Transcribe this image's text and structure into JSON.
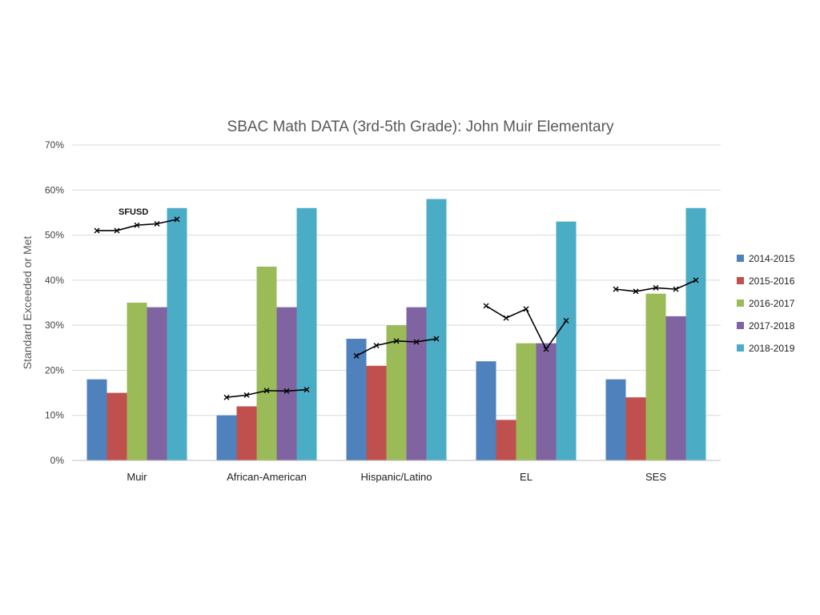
{
  "chart_data": {
    "type": "bar",
    "title": "SBAC Math DATA (3rd-5th Grade): John Muir Elementary",
    "xlabel": "",
    "ylabel": "Standard Exceeded or Met",
    "ylim": [
      0,
      70
    ],
    "yticks": [
      "0%",
      "10%",
      "20%",
      "30%",
      "40%",
      "50%",
      "60%",
      "70%"
    ],
    "grid": true,
    "legend_position": "right",
    "categories": [
      "Muir",
      "African-American",
      "Hispanic/Latino",
      "EL",
      "SES"
    ],
    "series": [
      {
        "name": "2014-2015",
        "color": "#4f81bd",
        "values": [
          18,
          10,
          27,
          22,
          18
        ]
      },
      {
        "name": "2015-2016",
        "color": "#c0504d",
        "values": [
          15,
          12,
          21,
          9,
          14
        ]
      },
      {
        "name": "2016-2017",
        "color": "#9bbb59",
        "values": [
          35,
          43,
          30,
          26,
          37
        ]
      },
      {
        "name": "2017-2018",
        "color": "#8064a2",
        "values": [
          34,
          34,
          34,
          26,
          32
        ]
      },
      {
        "name": "2018-2019",
        "color": "#4bacc6",
        "values": [
          56,
          56,
          58,
          53,
          56
        ]
      }
    ],
    "overlay_lines": [
      {
        "category": "Muir",
        "values": [
          51,
          51,
          52.2,
          52.5,
          53.5
        ]
      },
      {
        "category": "African-American",
        "values": [
          14,
          14.5,
          15.5,
          15.4,
          15.7
        ]
      },
      {
        "category": "Hispanic/Latino",
        "values": [
          23.2,
          25.5,
          26.5,
          26.3,
          27
        ]
      },
      {
        "category": "EL",
        "values": [
          34.3,
          31.6,
          33.6,
          24.7,
          31
        ]
      },
      {
        "category": "SES",
        "values": [
          38,
          37.5,
          38.3,
          38,
          40
        ]
      }
    ],
    "annotations": [
      {
        "text": "SFUSD",
        "category": "Muir"
      }
    ]
  }
}
